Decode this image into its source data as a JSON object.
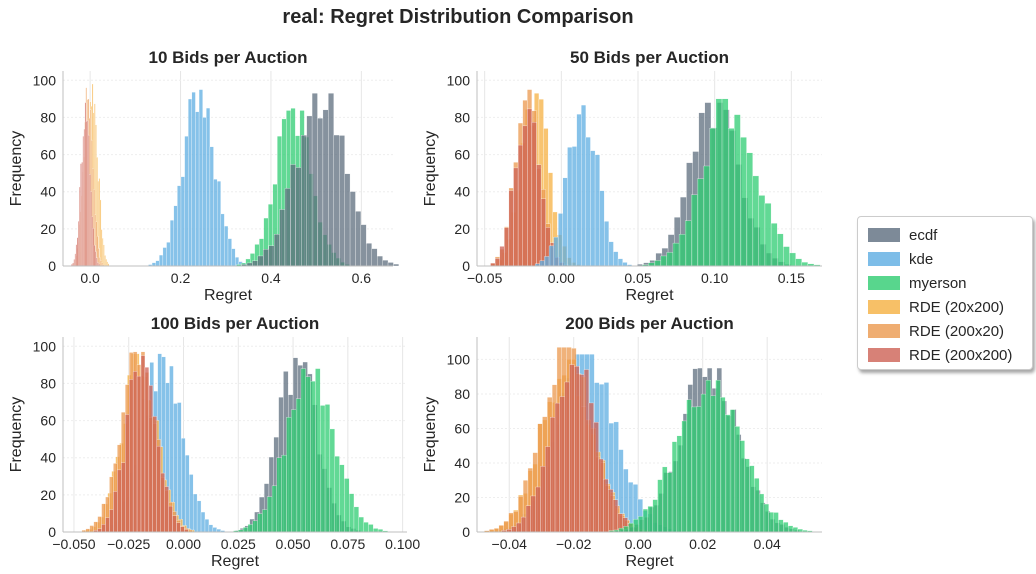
{
  "figure": {
    "title": "real: Regret Distribution Comparison"
  },
  "legend": [
    {
      "name": "ecdf",
      "color": "#5d6d7e"
    },
    {
      "name": "kde",
      "color": "#5dade2"
    },
    {
      "name": "myerson",
      "color": "#2ecc71"
    },
    {
      "name": "RDE (20x200)",
      "color": "#f5b041"
    },
    {
      "name": "RDE (200x20)",
      "color": "#eb984e"
    },
    {
      "name": "RDE (200x200)",
      "color": "#cd6155"
    }
  ],
  "chart_data": [
    {
      "type": "histogram",
      "title": "10 Bids per Auction",
      "xlabel": "Regret",
      "ylabel": "Frequency",
      "xlim": [
        -0.06,
        0.67
      ],
      "ylim": [
        0,
        105
      ],
      "xticks": [
        0.0,
        0.2,
        0.4,
        0.6
      ],
      "xtick_labels": [
        "0.0",
        "0.2",
        "0.4",
        "0.6"
      ],
      "yticks": [
        0,
        20,
        40,
        60,
        80,
        100
      ],
      "grid": true,
      "series": [
        {
          "name": "RDE (20x200)",
          "color": "#f5b041",
          "mean": 0.005,
          "sd": 0.012,
          "peak": 98,
          "bin": 0.0025
        },
        {
          "name": "RDE (200x20)",
          "color": "#eb984e",
          "mean": -0.005,
          "sd": 0.011,
          "peak": 96,
          "bin": 0.0025
        },
        {
          "name": "RDE (200x200)",
          "color": "#cd6155",
          "mean": -0.01,
          "sd": 0.01,
          "peak": 88,
          "bin": 0.0025
        },
        {
          "name": "kde",
          "color": "#5dade2",
          "mean": 0.24,
          "sd": 0.035,
          "peak": 95,
          "bin": 0.008
        },
        {
          "name": "myerson",
          "color": "#2ecc71",
          "mean": 0.45,
          "sd": 0.04,
          "peak": 85,
          "bin": 0.01
        },
        {
          "name": "ecdf",
          "color": "#5d6d7e",
          "mean": 0.51,
          "sd": 0.055,
          "peak": 93,
          "bin": 0.012
        }
      ]
    },
    {
      "type": "histogram",
      "title": "50 Bids per Auction",
      "xlabel": "Regret",
      "ylabel": "Frequency",
      "xlim": [
        -0.055,
        0.17
      ],
      "ylim": [
        0,
        105
      ],
      "xticks": [
        -0.05,
        0.0,
        0.05,
        0.1,
        0.15
      ],
      "xtick_labels": [
        "−0.05",
        "0.00",
        "0.05",
        "0.10",
        "0.15"
      ],
      "yticks": [
        0,
        20,
        40,
        60,
        80,
        100
      ],
      "grid": true,
      "series": [
        {
          "name": "RDE (20x200)",
          "color": "#f5b041",
          "mean": -0.017,
          "sd": 0.009,
          "peak": 93,
          "bin": 0.003
        },
        {
          "name": "RDE (200x20)",
          "color": "#eb984e",
          "mean": -0.022,
          "sd": 0.008,
          "peak": 95,
          "bin": 0.003
        },
        {
          "name": "RDE (200x200)",
          "color": "#cd6155",
          "mean": -0.022,
          "sd": 0.008,
          "peak": 90,
          "bin": 0.003
        },
        {
          "name": "kde",
          "color": "#5dade2",
          "mean": 0.014,
          "sd": 0.01,
          "peak": 87,
          "bin": 0.003
        },
        {
          "name": "ecdf",
          "color": "#5d6d7e",
          "mean": 0.1,
          "sd": 0.016,
          "peak": 88,
          "bin": 0.004
        },
        {
          "name": "myerson",
          "color": "#2ecc71",
          "mean": 0.11,
          "sd": 0.018,
          "peak": 90,
          "bin": 0.004
        }
      ]
    },
    {
      "type": "histogram",
      "title": "100 Bids per Auction",
      "xlabel": "Regret",
      "ylabel": "Frequency",
      "xlim": [
        -0.055,
        0.102
      ],
      "ylim": [
        0,
        105
      ],
      "xticks": [
        -0.05,
        -0.025,
        0.0,
        0.025,
        0.05,
        0.075,
        0.1
      ],
      "xtick_labels": [
        "−0.050",
        "−0.025",
        "0.000",
        "0.025",
        "0.050",
        "0.075",
        "0.100"
      ],
      "yticks": [
        0,
        20,
        40,
        60,
        80,
        100
      ],
      "grid": true,
      "series": [
        {
          "name": "kde",
          "color": "#5dade2",
          "mean": -0.01,
          "sd": 0.009,
          "peak": 96,
          "bin": 0.0018
        },
        {
          "name": "RDE (20x200)",
          "color": "#f5b041",
          "mean": -0.02,
          "sd": 0.008,
          "peak": 96,
          "bin": 0.0018
        },
        {
          "name": "RDE (200x20)",
          "color": "#eb984e",
          "mean": -0.021,
          "sd": 0.008,
          "peak": 97,
          "bin": 0.0018
        },
        {
          "name": "RDE (200x200)",
          "color": "#cd6155",
          "mean": -0.019,
          "sd": 0.007,
          "peak": 95,
          "bin": 0.0018
        },
        {
          "name": "ecdf",
          "color": "#5d6d7e",
          "mean": 0.052,
          "sd": 0.009,
          "peak": 95,
          "bin": 0.0022
        },
        {
          "name": "myerson",
          "color": "#2ecc71",
          "mean": 0.058,
          "sd": 0.011,
          "peak": 88,
          "bin": 0.0022
        }
      ]
    },
    {
      "type": "histogram",
      "title": "200 Bids per Auction",
      "xlabel": "Regret",
      "ylabel": "Frequency",
      "xlim": [
        -0.05,
        0.057
      ],
      "ylim": [
        0,
        113
      ],
      "xticks": [
        -0.04,
        -0.02,
        0.0,
        0.02,
        0.04
      ],
      "xtick_labels": [
        "−0.04",
        "−0.02",
        "0.00",
        "0.02",
        "0.04"
      ],
      "yticks": [
        0,
        20,
        40,
        60,
        80,
        100
      ],
      "grid": true,
      "series": [
        {
          "name": "kde",
          "color": "#5dade2",
          "mean": -0.016,
          "sd": 0.009,
          "peak": 103,
          "bin": 0.0015
        },
        {
          "name": "RDE (20x200)",
          "color": "#f5b041",
          "mean": -0.022,
          "sd": 0.008,
          "peak": 100,
          "bin": 0.0015
        },
        {
          "name": "RDE (200x20)",
          "color": "#eb984e",
          "mean": -0.022,
          "sd": 0.008,
          "peak": 107,
          "bin": 0.0015
        },
        {
          "name": "RDE (200x200)",
          "color": "#cd6155",
          "mean": -0.02,
          "sd": 0.007,
          "peak": 102,
          "bin": 0.0015
        },
        {
          "name": "ecdf",
          "color": "#5d6d7e",
          "mean": 0.022,
          "sd": 0.009,
          "peak": 95,
          "bin": 0.0015
        },
        {
          "name": "myerson",
          "color": "#2ecc71",
          "mean": 0.022,
          "sd": 0.01,
          "peak": 88,
          "bin": 0.0015
        }
      ]
    }
  ]
}
